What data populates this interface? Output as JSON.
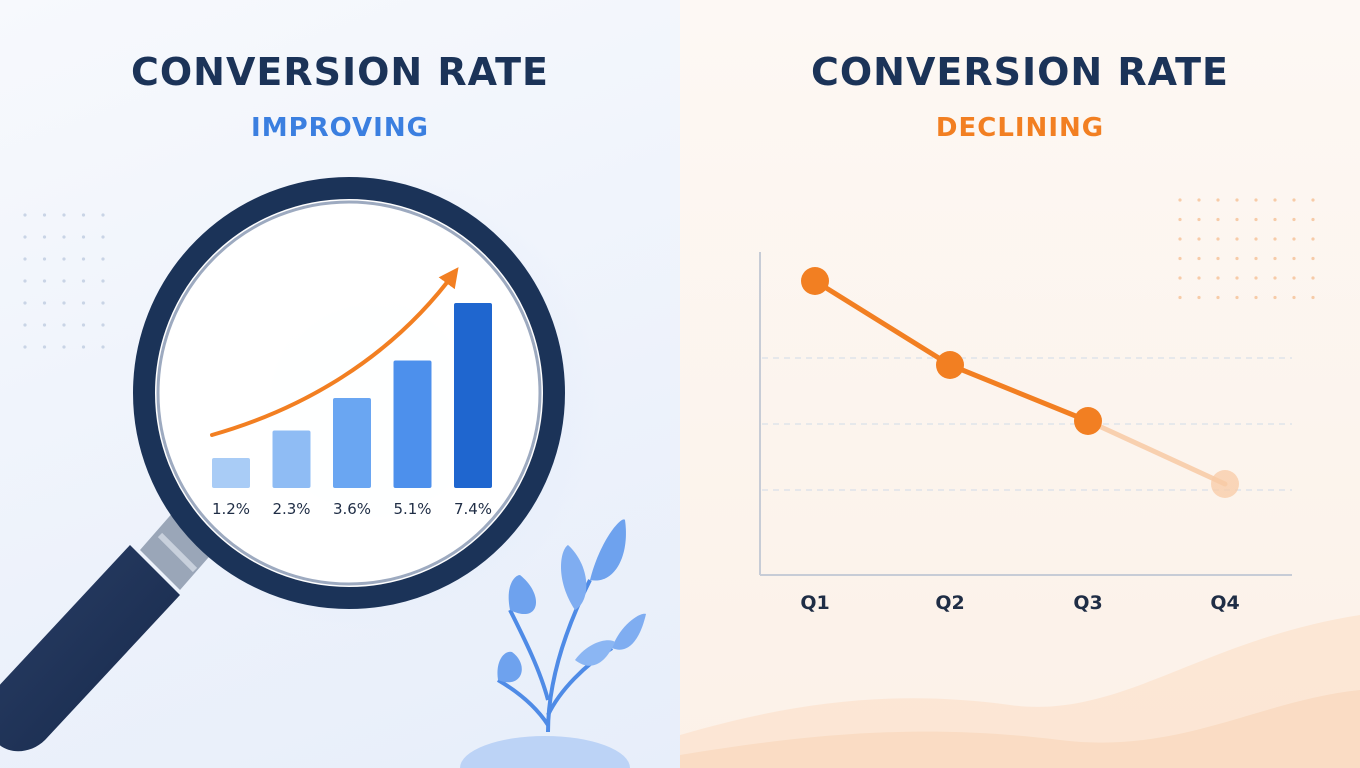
{
  "chart_data": [
    {
      "type": "bar",
      "title": "CONVERSION RATE",
      "subtitle": "IMPROVING",
      "categories": [
        "1.2%",
        "2.3%",
        "3.6%",
        "5.1%",
        "7.4%"
      ],
      "values": [
        1.2,
        2.3,
        3.6,
        5.1,
        7.4
      ],
      "unit": "%",
      "trend": "up",
      "bar_colors": [
        "#a9ccf6",
        "#8fbcf4",
        "#6aa6f2",
        "#4d90ec",
        "#1f66cf"
      ],
      "arrow_color": "#f27f22",
      "ylim": [
        0,
        8
      ]
    },
    {
      "type": "line",
      "title": "CONVERSION RATE",
      "subtitle": "DECLINING",
      "categories": [
        "Q1",
        "Q2",
        "Q3",
        "Q4"
      ],
      "values": [
        4.2,
        3.0,
        2.2,
        1.3
      ],
      "trend": "down",
      "line_color": "#f27f22",
      "grid": true,
      "ylim": [
        0,
        5
      ]
    }
  ]
}
